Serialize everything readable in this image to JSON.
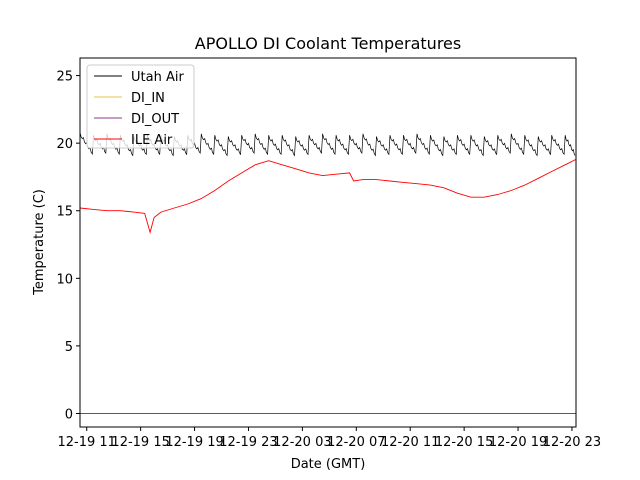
{
  "chart_data": {
    "type": "line",
    "title": "APOLLO DI Coolant Temperatures",
    "xlabel": "Date (GMT)",
    "ylabel": "Temperature (C)",
    "xlim": [
      10.5,
      47.3
    ],
    "ylim": [
      -1,
      26.3
    ],
    "yticks": [
      0,
      5,
      10,
      15,
      20,
      25
    ],
    "ytick_labels": [
      "0",
      "5",
      "10",
      "15",
      "20",
      "25"
    ],
    "xticks": [
      11,
      15,
      19,
      23,
      27,
      31,
      35,
      39,
      43,
      47
    ],
    "xtick_labels": [
      "12-19 11",
      "12-19 15",
      "12-19 19",
      "12-19 23",
      "12-20 03",
      "12-20 07",
      "12-20 11",
      "12-20 15",
      "12-20 19",
      "12-20 23"
    ],
    "legend_position": "top-left",
    "series": [
      {
        "name": "Utah Air",
        "color": "#000000",
        "stroke_width": 0.7,
        "x": [
          10.5,
          11.5,
          12.5,
          13.5,
          14.5,
          15.5,
          16.5,
          17.5,
          18.5,
          19.5,
          20.5,
          21.5,
          22.5,
          23.5,
          24.5,
          25.5,
          26.5,
          27.5,
          28.5,
          29.5,
          30.5,
          31.5,
          32.5,
          33.5,
          34.5,
          35.5,
          36.5,
          37.5,
          38.5,
          39.5,
          40.5,
          41.5,
          42.5,
          43.5,
          44.5,
          45.5,
          46.5,
          47.3
        ],
        "values": [
          19.8,
          19.6,
          19.7,
          19.6,
          19.5,
          19.6,
          19.6,
          19.5,
          19.6,
          19.7,
          19.6,
          19.5,
          19.6,
          19.7,
          19.6,
          19.6,
          19.5,
          19.6,
          19.7,
          19.6,
          19.6,
          19.7,
          19.5,
          19.6,
          19.6,
          19.7,
          19.6,
          19.5,
          19.6,
          19.6,
          19.5,
          19.6,
          19.7,
          19.6,
          19.5,
          19.6,
          19.6,
          19.5
        ],
        "sawtooth_amplitude": 1.2
      },
      {
        "name": "DI_IN",
        "color": "#e6c34a",
        "stroke_width": 0.7,
        "x": [],
        "values": []
      },
      {
        "name": "DI_OUT",
        "color": "#8b3a8b",
        "stroke_width": 0.9,
        "x": [
          10.5,
          47.3
        ],
        "values": [
          0.0,
          0.0
        ]
      },
      {
        "name": "ILE Air",
        "color": "#ff0000",
        "stroke_width": 0.9,
        "x": [
          10.5,
          11.5,
          12.5,
          13.5,
          14.5,
          15.3,
          15.7,
          16.0,
          16.5,
          17.5,
          18.5,
          19.5,
          20.5,
          21.5,
          22.5,
          23.5,
          24.5,
          25.5,
          26.5,
          27.5,
          28.5,
          29.5,
          30.5,
          30.8,
          31.5,
          32.5,
          33.5,
          34.5,
          35.5,
          36.5,
          37.5,
          38.5,
          39.5,
          40.5,
          41.5,
          42.5,
          43.5,
          44.5,
          45.5,
          46.5,
          47.3
        ],
        "values": [
          15.2,
          15.1,
          15.0,
          15.0,
          14.9,
          14.8,
          13.4,
          14.5,
          14.9,
          15.2,
          15.5,
          15.9,
          16.5,
          17.2,
          17.8,
          18.4,
          18.7,
          18.4,
          18.1,
          17.8,
          17.6,
          17.7,
          17.8,
          17.2,
          17.3,
          17.3,
          17.2,
          17.1,
          17.0,
          16.9,
          16.7,
          16.3,
          16.0,
          16.0,
          16.2,
          16.5,
          16.9,
          17.4,
          17.9,
          18.4,
          18.8
        ]
      }
    ]
  }
}
